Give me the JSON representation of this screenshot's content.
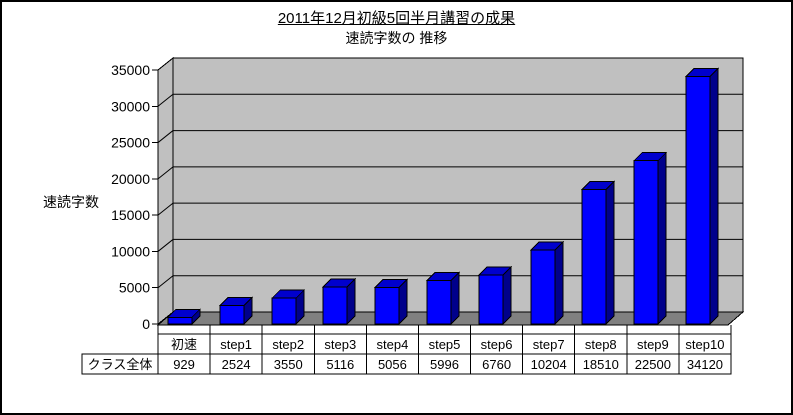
{
  "chart_data": {
    "type": "bar",
    "style": "3d-column",
    "title": "2011年12月初級5回半月講習の成果",
    "subtitle": "速読字数の 推移",
    "ylabel": "速読字数",
    "categories": [
      "初速",
      "step1",
      "step2",
      "step3",
      "step4",
      "step5",
      "step6",
      "step7",
      "step8",
      "step9",
      "step10"
    ],
    "series": [
      {
        "name": "クラス全体",
        "values": [
          929,
          2524,
          3550,
          5116,
          5056,
          5996,
          6760,
          10204,
          18510,
          22500,
          34120
        ]
      }
    ],
    "ylim": [
      0,
      35000
    ],
    "ytick_step": 5000,
    "ytick_labels": [
      "0",
      "5000",
      "10000",
      "15000",
      "20000",
      "25000",
      "30000",
      "35000"
    ],
    "grid": true,
    "legend": "none",
    "colors": {
      "bar_front": "#0000FF",
      "bar_top": "#0000CD",
      "bar_side": "#00008B",
      "wall": "#C0C0C0",
      "floor": "#808080",
      "outline": "#000000",
      "background": "#FFFFFF"
    }
  }
}
